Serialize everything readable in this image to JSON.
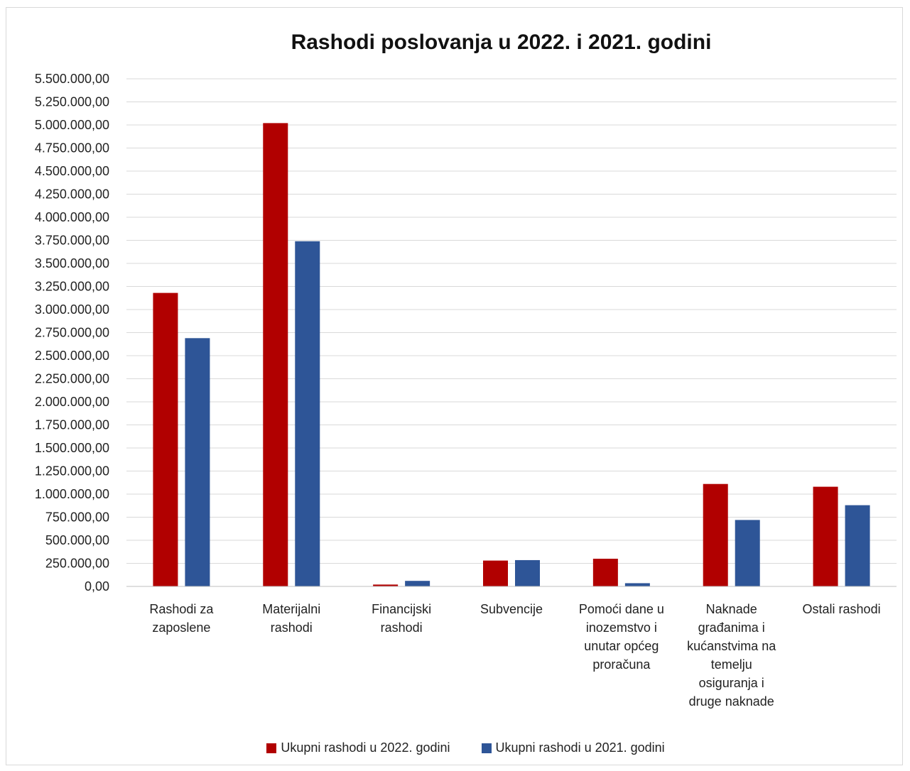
{
  "chart_data": {
    "type": "bar",
    "title": "Rashodi poslovanja u 2022. i 2021. godini",
    "xlabel": "",
    "ylabel": "",
    "ylim": [
      0,
      5500000
    ],
    "ytick_step": 250000,
    "ytick_labels": [
      "0,00",
      "250.000,00",
      "500.000,00",
      "750.000,00",
      "1.000.000,00",
      "1.250.000,00",
      "1.500.000,00",
      "1.750.000,00",
      "2.000.000,00",
      "2.250.000,00",
      "2.500.000,00",
      "2.750.000,00",
      "3.000.000,00",
      "3.250.000,00",
      "3.500.000,00",
      "3.750.000,00",
      "4.000.000,00",
      "4.250.000,00",
      "4.500.000,00",
      "4.750.000,00",
      "5.000.000,00",
      "5.250.000,00",
      "5.500.000,00"
    ],
    "grid": true,
    "legend_position": "bottom",
    "categories": [
      [
        "Rashodi za",
        "zaposlene"
      ],
      [
        "Materijalni",
        "rashodi"
      ],
      [
        "Financijski",
        "rashodi"
      ],
      [
        "Subvencije"
      ],
      [
        "Pomoći dane u",
        "inozemstvo i",
        "unutar općeg",
        "proračuna"
      ],
      [
        "Naknade",
        "građanima i",
        "kućanstvima na",
        "temelju",
        "osiguranja i",
        "druge naknade"
      ],
      [
        "Ostali rashodi"
      ]
    ],
    "series": [
      {
        "name": "Ukupni rashodi u 2022. godini",
        "color": "#b10000",
        "values": [
          3180000,
          5020000,
          20000,
          280000,
          300000,
          1110000,
          1080000
        ]
      },
      {
        "name": "Ukupni rashodi u 2021. godini",
        "color": "#2e5597",
        "values": [
          2690000,
          3740000,
          60000,
          285000,
          35000,
          720000,
          880000
        ]
      }
    ]
  }
}
